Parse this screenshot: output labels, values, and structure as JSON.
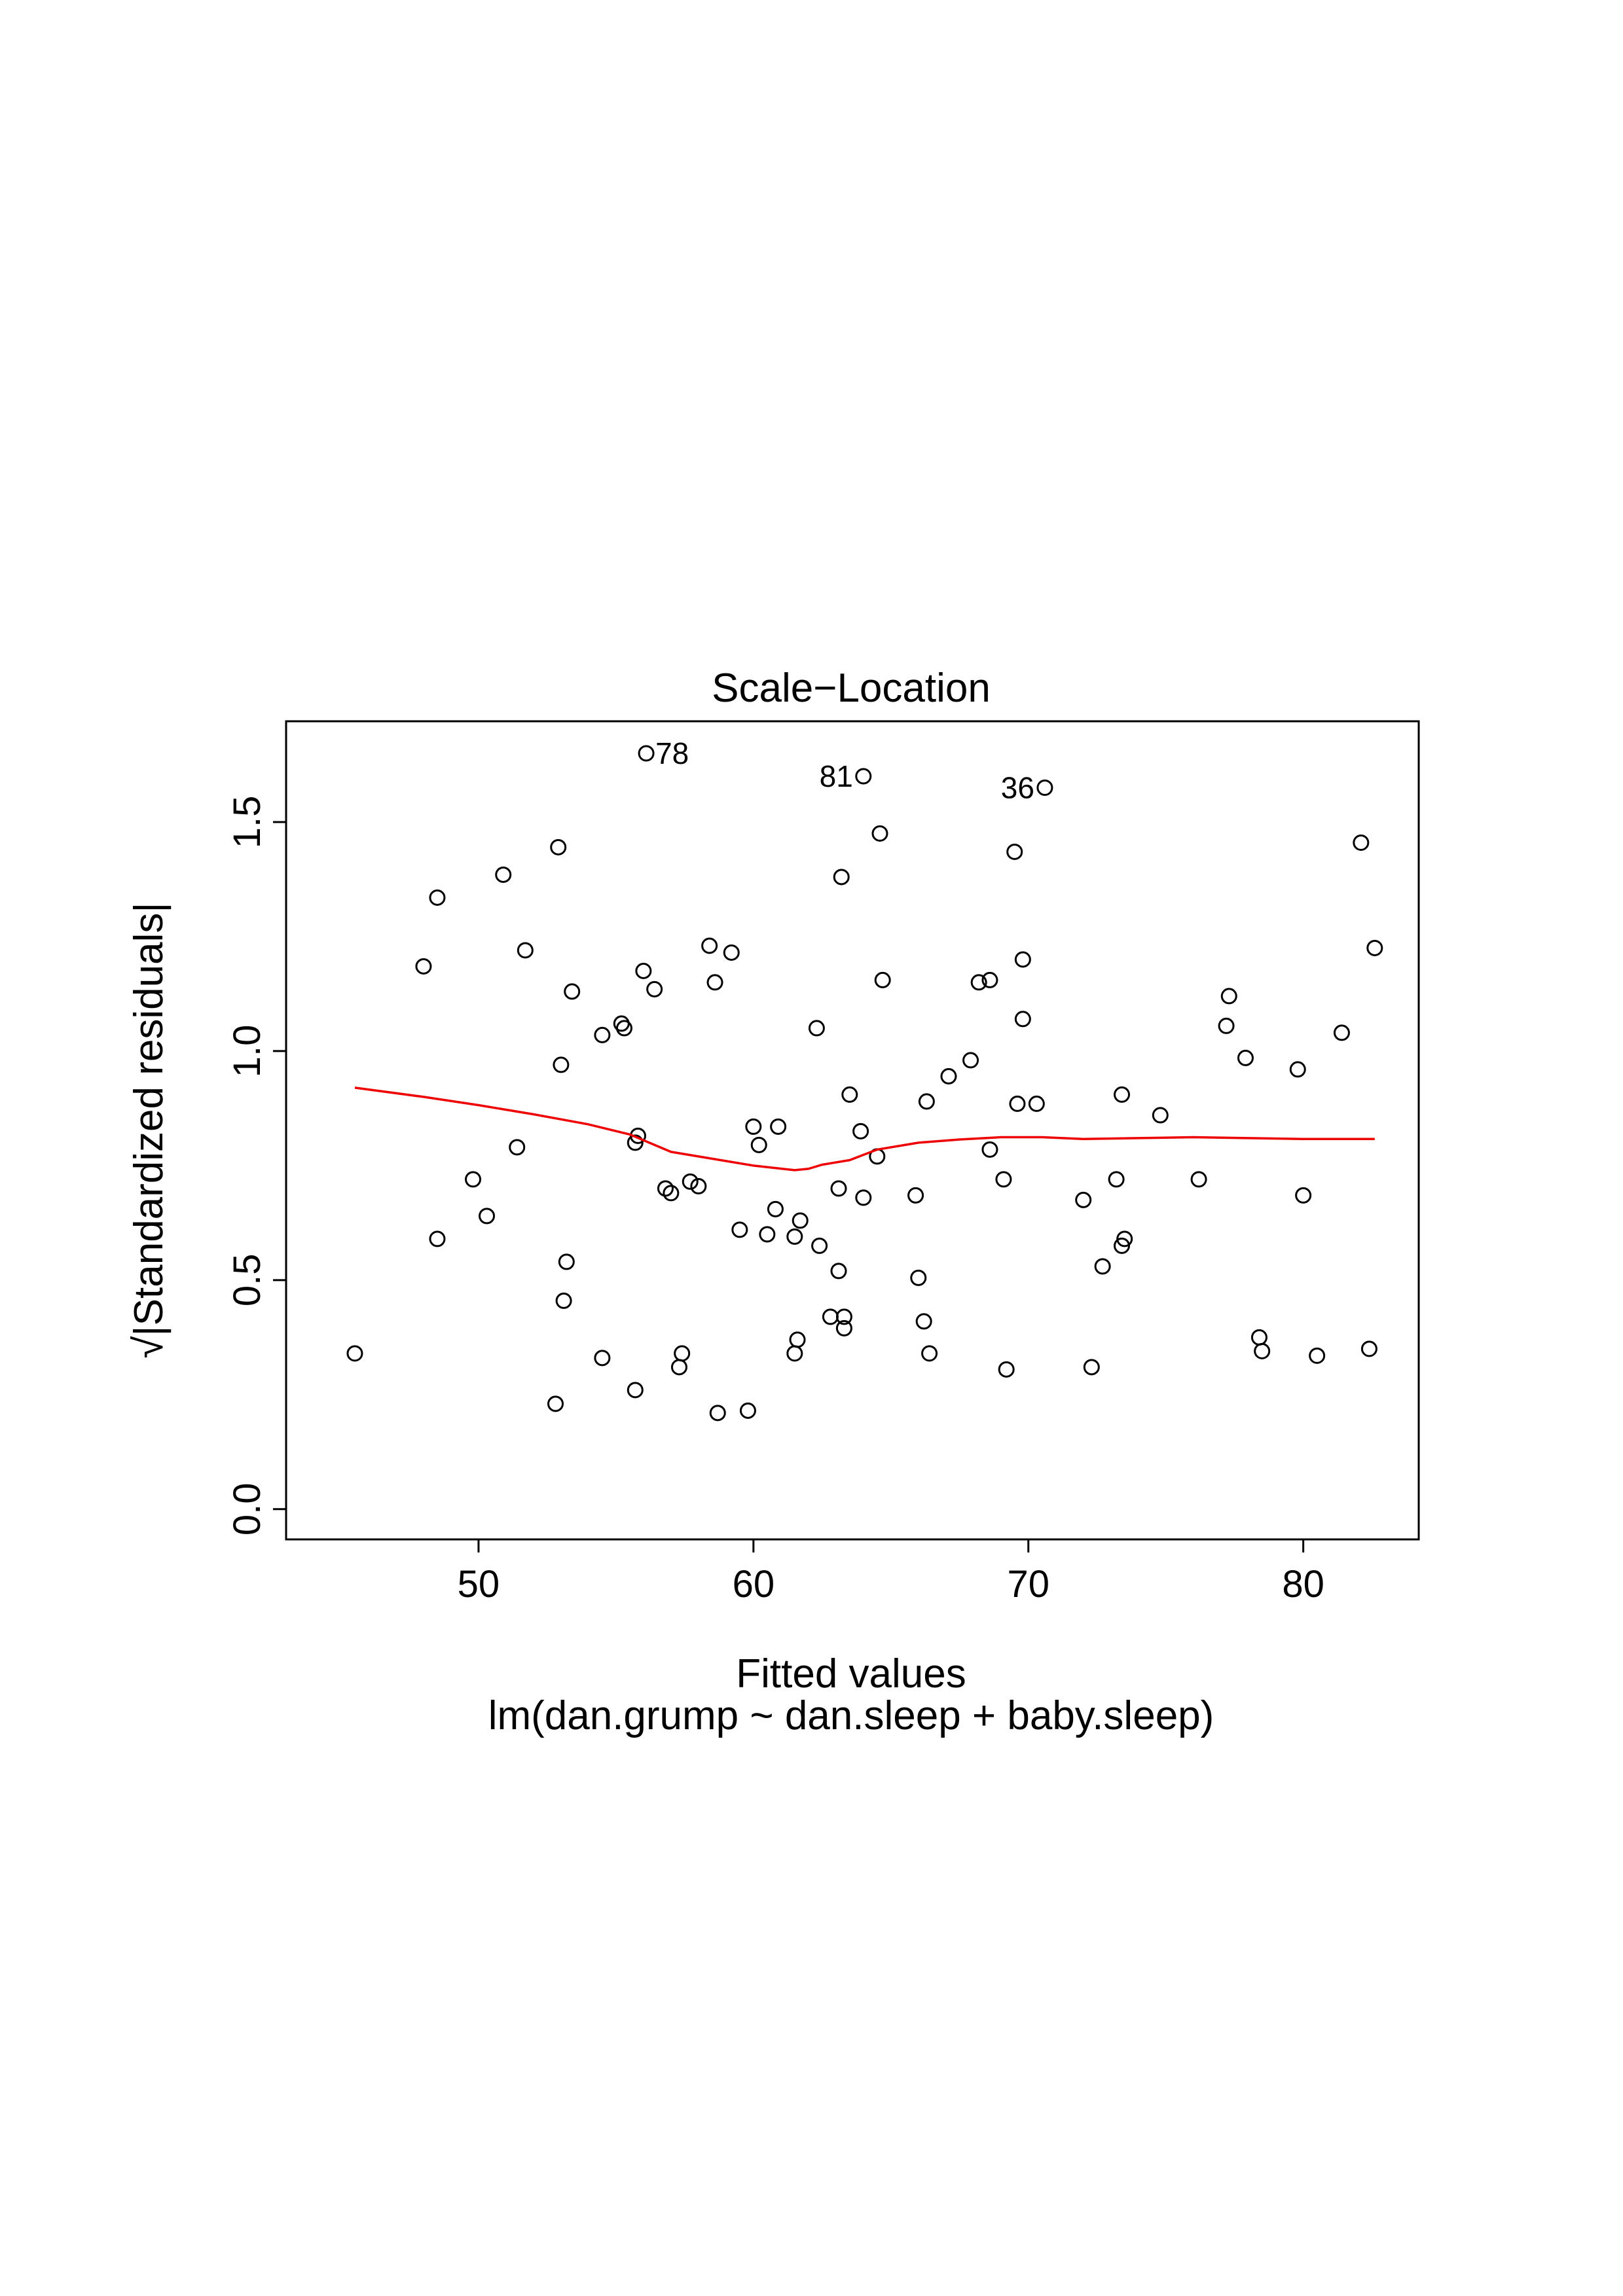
{
  "chart_data": {
    "type": "scatter",
    "title": "Scale−Location",
    "xlabel": "Fitted values",
    "subtitle": "lm(dan.grump ~ dan.sleep + baby.sleep)",
    "ylabel_radical": "√",
    "ylabel": "|Standardized residuals|",
    "xlim": [
      43,
      84.2
    ],
    "ylim": [
      -0.066,
      1.72
    ],
    "x_ticks": [
      50,
      60,
      70,
      80
    ],
    "x_tick_labels": [
      "50",
      "60",
      "70",
      "80"
    ],
    "y_ticks": [
      0.0,
      0.5,
      1.0,
      1.5
    ],
    "y_tick_labels": [
      "0.0",
      "0.5",
      "1.0",
      "1.5"
    ],
    "grid": false,
    "points": [
      [
        45.5,
        0.34
      ],
      [
        48.0,
        1.185
      ],
      [
        48.5,
        1.335
      ],
      [
        48.5,
        0.59
      ],
      [
        49.8,
        0.72
      ],
      [
        50.3,
        0.64
      ],
      [
        50.9,
        1.385
      ],
      [
        51.4,
        0.79
      ],
      [
        51.7,
        1.22
      ],
      [
        52.8,
        0.23
      ],
      [
        52.9,
        1.445
      ],
      [
        53.0,
        0.97
      ],
      [
        53.1,
        0.455
      ],
      [
        53.2,
        0.54
      ],
      [
        53.4,
        1.13
      ],
      [
        54.5,
        1.035
      ],
      [
        54.5,
        0.33
      ],
      [
        55.2,
        1.06
      ],
      [
        55.3,
        1.05
      ],
      [
        55.7,
        0.26
      ],
      [
        55.7,
        0.8
      ],
      [
        55.8,
        0.815
      ],
      [
        56.0,
        1.175
      ],
      [
        56.1,
        1.65
      ],
      [
        56.4,
        1.135
      ],
      [
        56.8,
        0.7
      ],
      [
        57.0,
        0.69
      ],
      [
        57.3,
        0.31
      ],
      [
        57.4,
        0.34
      ],
      [
        57.7,
        0.715
      ],
      [
        58.0,
        0.705
      ],
      [
        58.4,
        1.23
      ],
      [
        58.6,
        1.15
      ],
      [
        58.7,
        0.21
      ],
      [
        59.2,
        1.215
      ],
      [
        59.5,
        0.61
      ],
      [
        59.8,
        0.215
      ],
      [
        60.0,
        0.835
      ],
      [
        60.2,
        0.795
      ],
      [
        60.5,
        0.6
      ],
      [
        60.8,
        0.655
      ],
      [
        60.9,
        0.835
      ],
      [
        61.5,
        0.34
      ],
      [
        61.5,
        0.595
      ],
      [
        61.6,
        0.37
      ],
      [
        61.7,
        0.63
      ],
      [
        62.3,
        1.05
      ],
      [
        62.4,
        0.575
      ],
      [
        62.8,
        0.42
      ],
      [
        63.1,
        0.52
      ],
      [
        63.1,
        0.7
      ],
      [
        63.2,
        1.38
      ],
      [
        63.3,
        0.42
      ],
      [
        63.3,
        0.395
      ],
      [
        63.5,
        0.905
      ],
      [
        63.9,
        0.825
      ],
      [
        64.0,
        1.6
      ],
      [
        64.0,
        0.68
      ],
      [
        64.5,
        0.77
      ],
      [
        64.6,
        1.475
      ],
      [
        64.7,
        1.155
      ],
      [
        65.9,
        0.685
      ],
      [
        66.0,
        0.505
      ],
      [
        66.2,
        0.41
      ],
      [
        66.3,
        0.89
      ],
      [
        66.4,
        0.34
      ],
      [
        67.1,
        0.945
      ],
      [
        67.9,
        0.98
      ],
      [
        68.2,
        1.15
      ],
      [
        68.6,
        0.785
      ],
      [
        68.6,
        1.155
      ],
      [
        69.1,
        0.72
      ],
      [
        69.2,
        0.305
      ],
      [
        69.5,
        1.435
      ],
      [
        69.6,
        0.885
      ],
      [
        69.8,
        1.2
      ],
      [
        69.8,
        1.07
      ],
      [
        70.3,
        0.885
      ],
      [
        70.6,
        1.575
      ],
      [
        72.0,
        0.675
      ],
      [
        72.3,
        0.31
      ],
      [
        72.7,
        0.53
      ],
      [
        73.2,
        0.72
      ],
      [
        73.4,
        0.575
      ],
      [
        73.4,
        0.905
      ],
      [
        73.5,
        0.59
      ],
      [
        74.8,
        0.86
      ],
      [
        76.2,
        0.72
      ],
      [
        77.2,
        1.055
      ],
      [
        77.3,
        1.12
      ],
      [
        77.9,
        0.985
      ],
      [
        78.4,
        0.375
      ],
      [
        78.5,
        0.345
      ],
      [
        79.8,
        0.96
      ],
      [
        80.0,
        0.685
      ],
      [
        80.5,
        0.335
      ],
      [
        81.4,
        1.04
      ],
      [
        82.1,
        1.455
      ],
      [
        82.4,
        0.35
      ],
      [
        82.6,
        1.225
      ]
    ],
    "labeled_points": [
      {
        "label": "78",
        "x": 56.1,
        "y": 1.65,
        "side": "right"
      },
      {
        "label": "81",
        "x": 64.0,
        "y": 1.6,
        "side": "left"
      },
      {
        "label": "36",
        "x": 70.6,
        "y": 1.575,
        "side": "left"
      }
    ],
    "smooth_line": {
      "color": "#ee0000",
      "x": [
        45.5,
        48,
        50,
        52,
        54,
        55.5,
        57,
        58.5,
        60,
        61.5,
        62,
        62.5,
        63.5,
        64.5,
        66,
        67.5,
        69,
        70.5,
        72,
        74,
        76,
        78,
        80,
        82.6
      ],
      "y": [
        0.92,
        0.9,
        0.882,
        0.862,
        0.84,
        0.818,
        0.78,
        0.765,
        0.75,
        0.74,
        0.743,
        0.752,
        0.762,
        0.785,
        0.8,
        0.807,
        0.812,
        0.812,
        0.808,
        0.81,
        0.812,
        0.81,
        0.808,
        0.808
      ]
    }
  }
}
